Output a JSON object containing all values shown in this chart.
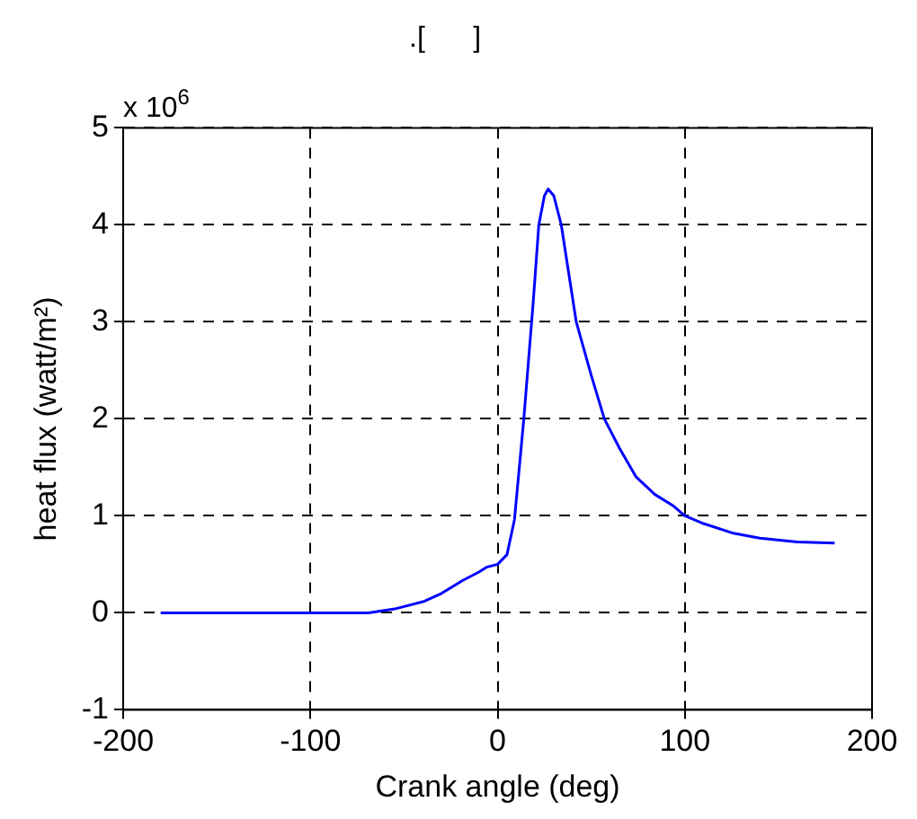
{
  "chart_data": {
    "type": "line",
    "title": ".[      ]",
    "xlabel": "Crank angle (deg)",
    "ylabel": "heat flux (watt/m²)",
    "annotations": [
      "x 10$^{6}$"
    ],
    "series": [
      {
        "color": "#0000ff",
        "x": [
          -180,
          -120,
          -69,
          -55,
          -39,
          -30,
          -19,
          -10,
          -6,
          0,
          5,
          9,
          14,
          19,
          22,
          25,
          27,
          30,
          34,
          38,
          42,
          50,
          57,
          65,
          74,
          84,
          94,
          100,
          110,
          126,
          140,
          160,
          180
        ],
        "values": [
          0,
          0,
          0,
          0.04,
          0.12,
          0.2,
          0.33,
          0.42,
          0.47,
          0.5,
          0.6,
          0.96,
          2.0,
          3.2,
          4.0,
          4.3,
          4.37,
          4.3,
          4.0,
          3.5,
          3.0,
          2.45,
          2.0,
          1.7,
          1.4,
          1.22,
          1.1,
          1.0,
          0.92,
          0.82,
          0.77,
          0.73,
          0.72
        ]
      }
    ],
    "xlim": [
      -200,
      200
    ],
    "xticks": [
      -200,
      -100,
      0,
      100,
      200
    ],
    "ylim": [
      -1,
      5
    ],
    "yticks": [
      -1,
      0,
      1,
      2,
      3,
      4,
      5
    ],
    "grid": true,
    "legend": false,
    "marker": "none",
    "line_style": "solid"
  }
}
